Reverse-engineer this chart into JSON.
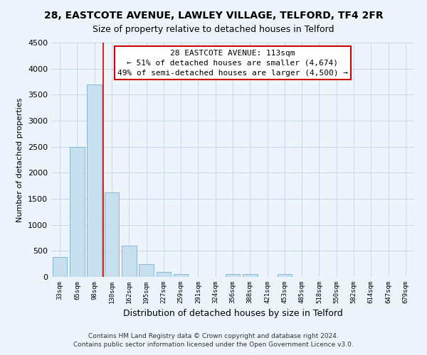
{
  "title": "28, EASTCOTE AVENUE, LAWLEY VILLAGE, TELFORD, TF4 2FR",
  "subtitle": "Size of property relative to detached houses in Telford",
  "xlabel": "Distribution of detached houses by size in Telford",
  "ylabel": "Number of detached properties",
  "bar_labels": [
    "33sqm",
    "65sqm",
    "98sqm",
    "130sqm",
    "162sqm",
    "195sqm",
    "227sqm",
    "259sqm",
    "291sqm",
    "324sqm",
    "356sqm",
    "388sqm",
    "421sqm",
    "453sqm",
    "485sqm",
    "518sqm",
    "550sqm",
    "582sqm",
    "614sqm",
    "647sqm",
    "679sqm"
  ],
  "bar_values": [
    380,
    2500,
    3700,
    1620,
    600,
    240,
    100,
    55,
    0,
    0,
    50,
    50,
    0,
    50,
    0,
    0,
    0,
    0,
    0,
    0,
    0
  ],
  "bar_color": "#c8dff0",
  "bar_edge_color": "#7bafd4",
  "annotation_line1": "28 EASTCOTE AVENUE: 113sqm",
  "annotation_line2": "← 51% of detached houses are smaller (4,674)",
  "annotation_line3": "49% of semi-detached houses are larger (4,500) →",
  "annotation_box_color": "#ffffff",
  "annotation_box_edge": "#cc0000",
  "line_color": "#cc0000",
  "ylim": [
    0,
    4500
  ],
  "yticks": [
    0,
    500,
    1000,
    1500,
    2000,
    2500,
    3000,
    3500,
    4000,
    4500
  ],
  "footer_line1": "Contains HM Land Registry data © Crown copyright and database right 2024.",
  "footer_line2": "Contains public sector information licensed under the Open Government Licence v3.0.",
  "bg_color": "#eef4fb",
  "grid_color": "#c8d8ea"
}
